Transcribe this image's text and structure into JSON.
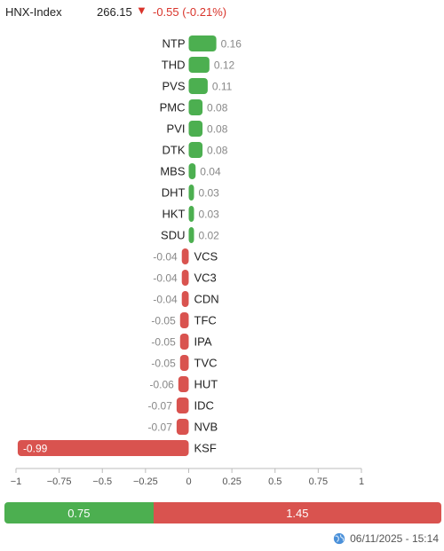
{
  "header": {
    "index_name": "HNX-Index",
    "index_value": "266.15",
    "arrow": "▼",
    "change_text": "-0.55 (-0.21%)"
  },
  "colors": {
    "up": "#4caf50",
    "down": "#d9534f",
    "axis": "#bbbbbb"
  },
  "chart_data": {
    "type": "bar",
    "orientation": "horizontal",
    "categories": [
      "NTP",
      "THD",
      "PVS",
      "PMC",
      "PVI",
      "DTK",
      "MBS",
      "DHT",
      "HKT",
      "SDU",
      "VCS",
      "VC3",
      "CDN",
      "TFC",
      "IPA",
      "TVC",
      "HUT",
      "IDC",
      "NVB",
      "KSF"
    ],
    "values": [
      0.16,
      0.12,
      0.11,
      0.08,
      0.08,
      0.08,
      0.04,
      0.03,
      0.03,
      0.02,
      -0.04,
      -0.04,
      -0.04,
      -0.05,
      -0.05,
      -0.05,
      -0.06,
      -0.07,
      -0.07,
      -0.99
    ],
    "value_labels": [
      "0.16",
      "0.12",
      "0.11",
      "0.08",
      "0.08",
      "0.08",
      "0.04",
      "0.03",
      "0.03",
      "0.02",
      "-0.04",
      "-0.04",
      "-0.04",
      "-0.05",
      "-0.05",
      "-0.05",
      "-0.06",
      "-0.07",
      "-0.07",
      "-0.99"
    ],
    "xlim": [
      -1,
      1
    ],
    "xticks": [
      -1,
      -0.75,
      -0.5,
      -0.25,
      0,
      0.25,
      0.5,
      0.75,
      1
    ],
    "xtick_labels": [
      "−1",
      "−0.75",
      "−0.5",
      "−0.25",
      "0",
      "0.25",
      "0.5",
      "0.75",
      "1"
    ]
  },
  "summary": {
    "up_value": 0.75,
    "up_label": "0.75",
    "down_value": 1.45,
    "down_label": "1.45"
  },
  "timestamp": "06/11/2025 - 15:14",
  "globe_icon": "globe-icon"
}
